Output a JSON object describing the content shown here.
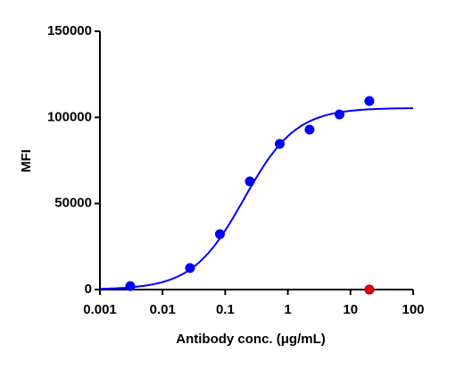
{
  "chart_data": {
    "type": "scatter",
    "xlabel": "Antibody conc. (μg/mL)",
    "ylabel": "MFI",
    "xscale": "log",
    "xlim": [
      0.001,
      100
    ],
    "xticks": [
      0.001,
      0.01,
      0.1,
      1,
      10,
      100
    ],
    "ylim": [
      0,
      150000
    ],
    "yticks": [
      0,
      50000,
      100000,
      150000
    ],
    "series": [
      {
        "color": "#0000ff",
        "x": [
          0.00305,
          0.0274,
          0.0823,
          0.247,
          0.741,
          2.22,
          6.67,
          20
        ],
        "values": [
          2000,
          12500,
          32200,
          62800,
          84600,
          92900,
          101700,
          109500
        ]
      },
      {
        "color": "#ff0000",
        "x": [
          20
        ],
        "values": [
          0
        ]
      }
    ],
    "fit": {
      "color": "#0000ff",
      "bottom": 0,
      "top": 105500,
      "ec50": 0.2,
      "hill": 1.05
    }
  }
}
